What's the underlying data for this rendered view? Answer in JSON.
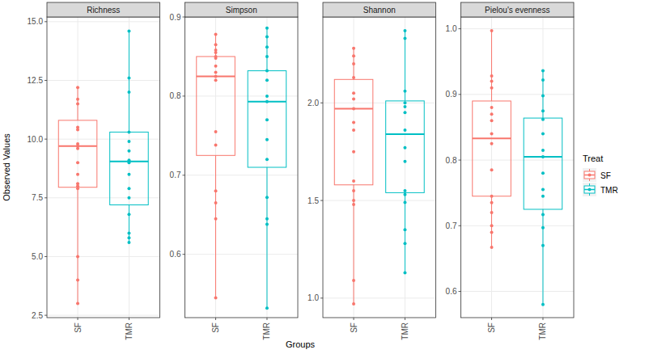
{
  "chart_data": {
    "type": "box",
    "x_label": "Groups",
    "y_label": "Observed Values",
    "legend_title": "Treat",
    "legend": "right",
    "grid": true,
    "categories": [
      "SF",
      "TMR"
    ],
    "series": [
      {
        "name": "SF",
        "color": "#F8766D"
      },
      {
        "name": "TMR",
        "color": "#00BFC4"
      }
    ],
    "panels": [
      {
        "title": "Richness",
        "ylim": [
          2.4,
          15.2
        ],
        "yticks": [
          2.5,
          {
            "value": 5,
            "label": "5.0"
          },
          7.5,
          {
            "value": 10,
            "label": "10.0"
          },
          12.5,
          {
            "value": 15,
            "label": "15.0"
          }
        ],
        "boxes": [
          {
            "whisker_low": 3.0,
            "q1": 7.95,
            "median": 9.7,
            "q3": 10.8,
            "whisker_high": 12.2
          },
          {
            "whisker_low": 5.6,
            "q1": 7.2,
            "median": 9.05,
            "q3": 10.3,
            "whisker_high": 14.6
          }
        ],
        "points": [
          [
            12.2,
            11.7,
            11.5,
            10.5,
            10.4,
            9.8,
            9.7,
            9.6,
            9.0,
            8.5,
            8.1,
            8.0,
            7.9,
            5.0,
            4.0,
            3.0
          ],
          [
            14.6,
            12.6,
            12.0,
            10.3,
            9.9,
            9.5,
            9.1,
            9.0,
            8.5,
            7.9,
            7.5,
            6.8,
            6.0,
            5.8,
            5.6
          ]
        ]
      },
      {
        "title": "Simpson",
        "ylim": [
          0.52,
          0.9
        ],
        "yticks": [
          0.6,
          0.7,
          0.8,
          0.9
        ],
        "boxes": [
          {
            "whisker_low": 0.545,
            "q1": 0.725,
            "median": 0.825,
            "q3": 0.85,
            "whisker_high": 0.878
          },
          {
            "whisker_low": 0.532,
            "q1": 0.71,
            "median": 0.793,
            "q3": 0.832,
            "whisker_high": 0.886
          }
        ],
        "points": [
          [
            0.878,
            0.865,
            0.858,
            0.855,
            0.85,
            0.848,
            0.838,
            0.83,
            0.825,
            0.82,
            0.755,
            0.738,
            0.68,
            0.665,
            0.645,
            0.545
          ],
          [
            0.886,
            0.875,
            0.862,
            0.85,
            0.832,
            0.82,
            0.8,
            0.793,
            0.77,
            0.745,
            0.72,
            0.672,
            0.645,
            0.638,
            0.532
          ]
        ]
      },
      {
        "title": "Shannon",
        "ylim": [
          0.9,
          2.44
        ],
        "yticks": [
          {
            "value": 1,
            "label": "1.0"
          },
          1.5,
          {
            "value": 2,
            "label": "2.0"
          }
        ],
        "boxes": [
          {
            "whisker_low": 0.97,
            "q1": 1.58,
            "median": 1.97,
            "q3": 2.12,
            "whisker_high": 2.28
          },
          {
            "whisker_low": 1.13,
            "q1": 1.54,
            "median": 1.84,
            "q3": 2.01,
            "whisker_high": 2.37
          }
        ],
        "points": [
          [
            2.28,
            2.24,
            2.2,
            2.13,
            2.05,
            2.02,
            1.97,
            1.9,
            1.86,
            1.75,
            1.6,
            1.55,
            1.5,
            1.48,
            1.09,
            0.97
          ],
          [
            2.37,
            2.33,
            2.06,
            2.0,
            1.98,
            1.95,
            1.86,
            1.77,
            1.7,
            1.55,
            1.53,
            1.49,
            1.35,
            1.28,
            1.13
          ]
        ]
      },
      {
        "title": "Pielou's evenness",
        "ylim": [
          0.56,
          1.018
        ],
        "yticks": [
          0.6,
          0.7,
          0.8,
          0.9,
          {
            "value": 1,
            "label": "1.0"
          }
        ],
        "boxes": [
          {
            "whisker_low": 0.667,
            "q1": 0.745,
            "median": 0.833,
            "q3": 0.89,
            "whisker_high": 0.997
          },
          {
            "whisker_low": 0.58,
            "q1": 0.725,
            "median": 0.805,
            "q3": 0.864,
            "whisker_high": 0.936
          }
        ],
        "points": [
          [
            0.997,
            0.928,
            0.92,
            0.91,
            0.88,
            0.87,
            0.86,
            0.84,
            0.825,
            0.785,
            0.745,
            0.735,
            0.72,
            0.7,
            0.69,
            0.667
          ],
          [
            0.936,
            0.922,
            0.898,
            0.875,
            0.862,
            0.84,
            0.815,
            0.805,
            0.78,
            0.755,
            0.745,
            0.717,
            0.697,
            0.67,
            0.58
          ]
        ]
      }
    ]
  }
}
